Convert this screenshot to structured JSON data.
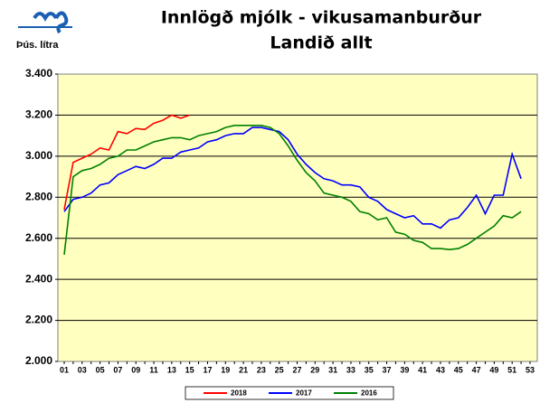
{
  "chart_data": {
    "type": "line",
    "title": "Innlögð mjólk - vikusamanburður",
    "subtitle": "Landið allt",
    "y_label": "Þús. lítra",
    "categories": [
      "01",
      null,
      "03",
      null,
      "05",
      null,
      "07",
      null,
      "09",
      null,
      "11",
      null,
      "13",
      null,
      "15",
      null,
      "17",
      null,
      "19",
      null,
      "21",
      null,
      "23",
      null,
      "25",
      null,
      "27",
      null,
      "29",
      null,
      "31",
      null,
      "33",
      null,
      "35",
      null,
      "37",
      null,
      "39",
      null,
      "41",
      null,
      "43",
      null,
      "45",
      null,
      "47",
      null,
      "49",
      null,
      "51",
      null,
      "53"
    ],
    "ylim": [
      2000,
      3400
    ],
    "yticks": [
      {
        "value": 2000,
        "label": "2.000"
      },
      {
        "value": 2200,
        "label": "2.200"
      },
      {
        "value": 2400,
        "label": "2.400"
      },
      {
        "value": 2600,
        "label": "2.600"
      },
      {
        "value": 2800,
        "label": "2.800"
      },
      {
        "value": 3000,
        "label": "3.000"
      },
      {
        "value": 3200,
        "label": "3.200"
      },
      {
        "value": 3400,
        "label": "3.400"
      }
    ],
    "grid": true,
    "series": [
      {
        "name": "2018",
        "color": "#ff0000",
        "values": [
          2740,
          2970,
          2990,
          3010,
          3040,
          3030,
          3120,
          3110,
          3135,
          3130,
          3160,
          3175,
          3200,
          3185,
          3200,
          null,
          null,
          null,
          null,
          null,
          null,
          null,
          null,
          null,
          null,
          null,
          null,
          null,
          null,
          null,
          null,
          null,
          null,
          null,
          null,
          null,
          null,
          null,
          null,
          null,
          null,
          null,
          null,
          null,
          null,
          null,
          null,
          null,
          null,
          null,
          null,
          null,
          null
        ]
      },
      {
        "name": "2017",
        "color": "#0000ff",
        "values": [
          2730,
          2790,
          2800,
          2820,
          2860,
          2870,
          2910,
          2930,
          2950,
          2940,
          2960,
          2990,
          2990,
          3020,
          3030,
          3040,
          3070,
          3080,
          3100,
          3110,
          3110,
          3140,
          3140,
          3130,
          3120,
          3080,
          3010,
          2960,
          2920,
          2890,
          2880,
          2860,
          2860,
          2850,
          2800,
          2780,
          2740,
          2720,
          2700,
          2710,
          2670,
          2670,
          2650,
          2690,
          2700,
          2750,
          2810,
          2720,
          2810,
          2810,
          3010,
          2890,
          null
        ]
      },
      {
        "name": "2016",
        "color": "#008000",
        "values": [
          2520,
          2900,
          2930,
          2940,
          2960,
          2990,
          3000,
          3030,
          3030,
          3050,
          3070,
          3080,
          3090,
          3090,
          3080,
          3100,
          3110,
          3120,
          3140,
          3150,
          3150,
          3150,
          3150,
          3140,
          3110,
          3050,
          2980,
          2920,
          2880,
          2820,
          2810,
          2800,
          2780,
          2730,
          2720,
          2690,
          2700,
          2630,
          2620,
          2590,
          2580,
          2550,
          2550,
          2545,
          2550,
          2570,
          2600,
          2630,
          2660,
          2710,
          2700,
          2730,
          null
        ]
      }
    ]
  }
}
